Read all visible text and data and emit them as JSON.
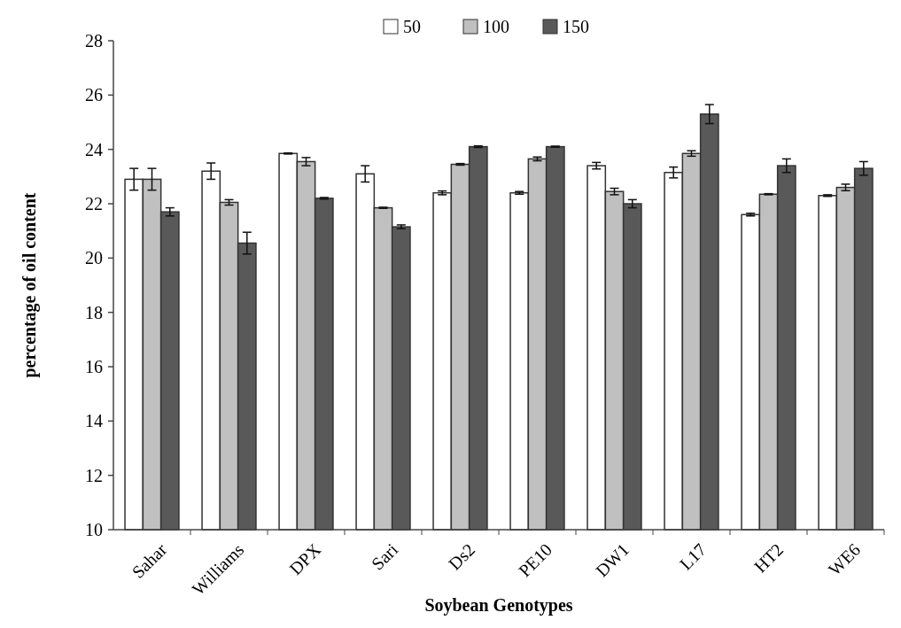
{
  "chart_data": {
    "type": "bar",
    "xlabel": "Soybean Genotypes",
    "ylabel": "percentage of oil content",
    "categories": [
      "Sahar",
      "Williams",
      "DPX",
      "Sari",
      "Ds2",
      "PE10",
      "DW1",
      "L17",
      "HT2",
      "WE6"
    ],
    "series": [
      {
        "name": "50",
        "color": "#ffffff",
        "values": [
          22.9,
          23.2,
          23.85,
          23.1,
          22.4,
          22.4,
          23.4,
          23.15,
          21.6,
          22.3
        ],
        "errors": [
          0.4,
          0.3,
          0.02,
          0.3,
          0.07,
          0.05,
          0.12,
          0.2,
          0.05,
          0.03
        ]
      },
      {
        "name": "100",
        "color": "#c0c0c0",
        "values": [
          22.9,
          22.05,
          23.55,
          21.85,
          23.45,
          23.65,
          22.45,
          23.85,
          22.35,
          22.6
        ],
        "errors": [
          0.4,
          0.1,
          0.15,
          0.02,
          0.03,
          0.07,
          0.12,
          0.1,
          0.02,
          0.12
        ]
      },
      {
        "name": "150",
        "color": "#595959",
        "values": [
          21.7,
          20.55,
          22.2,
          21.15,
          24.1,
          24.1,
          22.0,
          25.3,
          23.4,
          23.3
        ],
        "errors": [
          0.15,
          0.4,
          0.03,
          0.07,
          0.03,
          0.02,
          0.15,
          0.35,
          0.25,
          0.25
        ]
      }
    ],
    "ylim": [
      10,
      28
    ],
    "yticks": [
      10,
      12,
      14,
      16,
      18,
      20,
      22,
      24,
      26,
      28
    ],
    "grid": false,
    "legend": "top"
  }
}
